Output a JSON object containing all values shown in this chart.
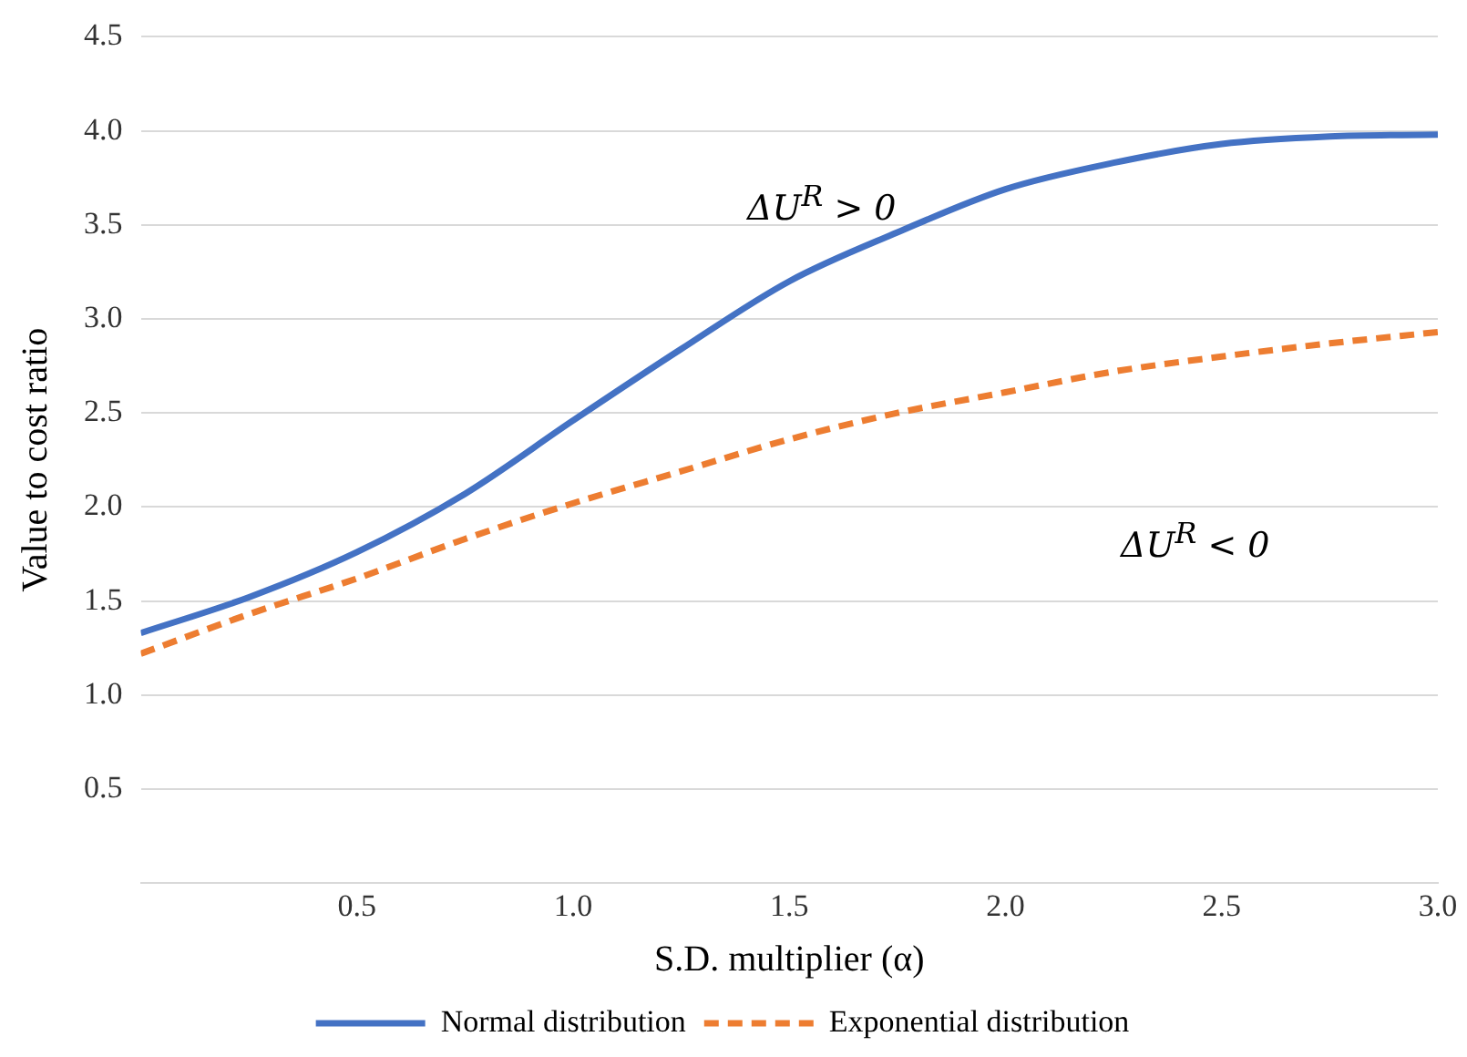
{
  "chart_data": {
    "type": "line",
    "xlabel": "S.D. multiplier (α)",
    "ylabel": "Value to cost ratio",
    "x": [
      0,
      0.25,
      0.5,
      0.75,
      1,
      1.25,
      1.5,
      1.75,
      2,
      2.25,
      2.5,
      2.75,
      3
    ],
    "series": [
      {
        "name": "Normal distribution",
        "color": "#4472c4",
        "line_style": "solid",
        "values": [
          1.33,
          1.52,
          1.76,
          2.07,
          2.46,
          2.84,
          3.2,
          3.46,
          3.69,
          3.83,
          3.93,
          3.97,
          3.98
        ]
      },
      {
        "name": "Exponential distribution",
        "color": "#ed7d31",
        "line_style": "dashed",
        "values": [
          1.22,
          1.43,
          1.62,
          1.83,
          2.02,
          2.19,
          2.36,
          2.5,
          2.61,
          2.72,
          2.8,
          2.87,
          2.93
        ]
      }
    ],
    "xlim": [
      0,
      3
    ],
    "xticks": [
      0.5,
      {
        "value": 1,
        "label": "1.0"
      },
      1.5,
      {
        "value": 2,
        "label": "2.0"
      },
      2.5,
      {
        "value": 3,
        "label": "3.0"
      }
    ],
    "ylim": [
      0,
      4.5
    ],
    "yticks": [
      {
        "value": 0,
        "label": null
      },
      0.5,
      {
        "value": 1,
        "label": "1.0"
      },
      1.5,
      {
        "value": 2,
        "label": "2.0"
      },
      2.5,
      {
        "value": 3,
        "label": "3.0"
      },
      3.5,
      {
        "value": 4,
        "label": "4.0"
      },
      4.5
    ],
    "grid": "y",
    "legend": "bottom",
    "marker": "none",
    "annotations": [
      "ΔU$^{R}$ > 0",
      "ΔU$^{R}$ < 0"
    ]
  }
}
